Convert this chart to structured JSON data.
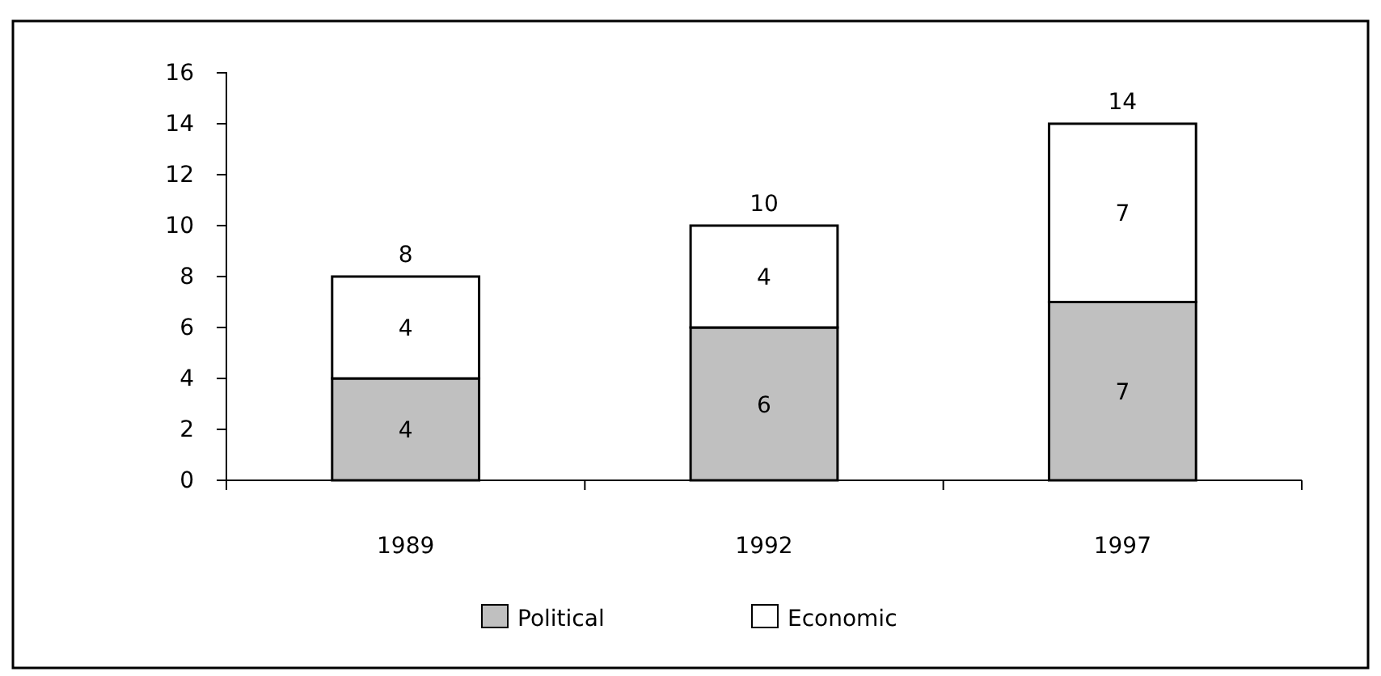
{
  "chart_data": {
    "type": "bar",
    "stacked": true,
    "categories": [
      "1989",
      "1992",
      "1997"
    ],
    "series": [
      {
        "name": "Political",
        "color": "#c0c0c0",
        "values": [
          4,
          6,
          7
        ]
      },
      {
        "name": "Economic",
        "color": "#ffffff",
        "values": [
          4,
          4,
          7
        ]
      }
    ],
    "ylim": [
      0,
      16
    ],
    "yticks": [
      0,
      2,
      4,
      6,
      8,
      10,
      12,
      14,
      16
    ],
    "data_labels": true,
    "totals": [
      "8",
      "10",
      "14"
    ],
    "legend": "bottom",
    "grid": false
  }
}
